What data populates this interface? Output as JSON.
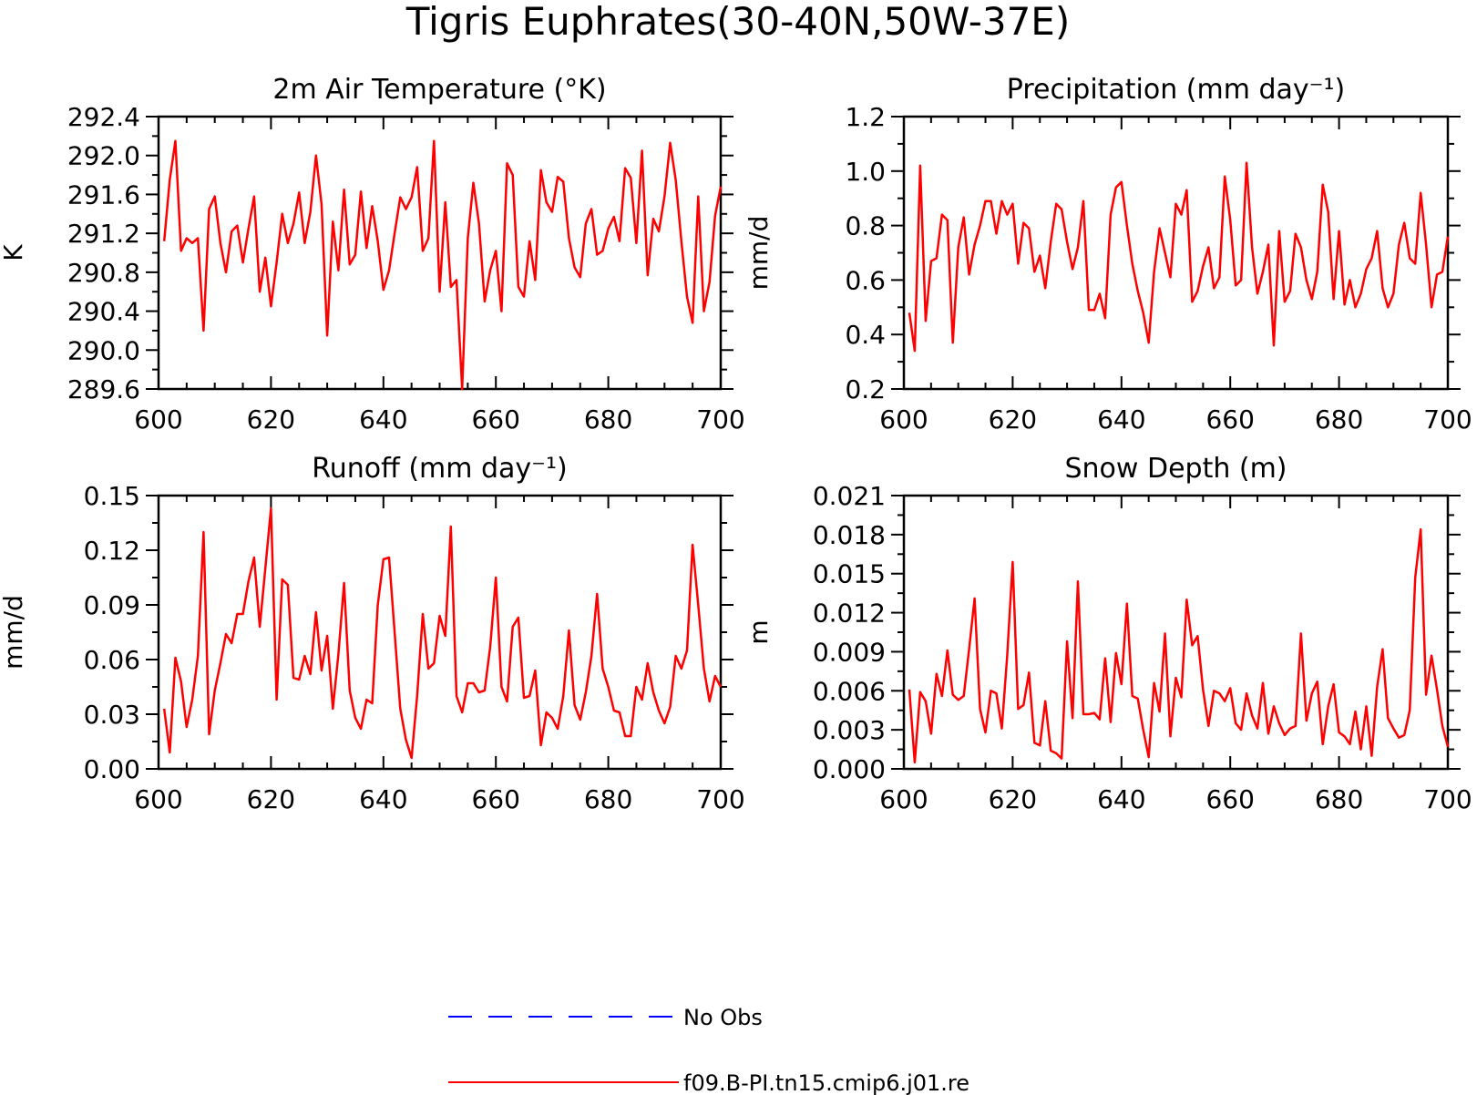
{
  "title": "Tigris Euphrates(30-40N,50W-37E)",
  "legend": {
    "entries": [
      {
        "label": "No Obs",
        "color": "#0000ff",
        "style": "dashed"
      },
      {
        "label": "f09.B-PI.tn15.cmip6.j01.re",
        "color": "#ff0000",
        "style": "solid"
      }
    ]
  },
  "chart_data": [
    {
      "type": "line",
      "title": "2m Air Temperature (°K)",
      "ylabel": "K",
      "xlabel": "",
      "xlim": [
        600,
        700
      ],
      "ylim": [
        289.6,
        292.4
      ],
      "xticks": [
        600,
        620,
        640,
        660,
        680,
        700
      ],
      "yticks": [
        "289.6",
        "290.0",
        "290.4",
        "290.8",
        "291.2",
        "291.6",
        "292.0",
        "292.4"
      ],
      "series": [
        {
          "name": "f09.B-PI.tn15.cmip6.j01.re",
          "color": "#ff0000",
          "x_start": 601,
          "values": [
            291.12,
            291.75,
            292.15,
            291.02,
            291.15,
            291.1,
            291.15,
            290.2,
            291.45,
            291.58,
            291.1,
            290.8,
            291.22,
            291.28,
            290.9,
            291.25,
            291.58,
            290.6,
            290.95,
            290.45,
            290.9,
            291.4,
            291.1,
            291.3,
            291.62,
            291.1,
            291.42,
            292.0,
            291.5,
            290.15,
            291.32,
            290.82,
            291.65,
            290.88,
            290.98,
            291.63,
            291.05,
            291.48,
            291.12,
            290.62,
            290.82,
            291.2,
            291.57,
            291.45,
            291.57,
            291.88,
            291.02,
            291.15,
            292.15,
            290.6,
            291.52,
            290.65,
            290.72,
            289.6,
            291.15,
            291.72,
            291.3,
            290.5,
            290.82,
            291.02,
            290.4,
            291.92,
            291.8,
            290.65,
            290.55,
            291.12,
            290.72,
            291.85,
            291.52,
            291.42,
            291.78,
            291.73,
            291.15,
            290.85,
            290.75,
            291.3,
            291.45,
            290.98,
            291.02,
            291.25,
            291.37,
            291.12,
            291.87,
            291.77,
            291.1,
            292.05,
            290.77,
            291.35,
            291.22,
            291.58,
            292.13,
            291.75,
            291.12,
            290.55,
            290.28,
            291.58,
            290.4,
            290.7,
            291.38,
            291.68
          ]
        }
      ]
    },
    {
      "type": "line",
      "title": "Precipitation (mm day⁻¹)",
      "ylabel": "mm/d",
      "xlabel": "",
      "xlim": [
        600,
        700
      ],
      "ylim": [
        0.2,
        1.2
      ],
      "xticks": [
        600,
        620,
        640,
        660,
        680,
        700
      ],
      "yticks": [
        "0.2",
        "0.4",
        "0.6",
        "0.8",
        "1.0",
        "1.2"
      ],
      "series": [
        {
          "name": "f09.B-PI.tn15.cmip6.j01.re",
          "color": "#ff0000",
          "x_start": 601,
          "values": [
            0.48,
            0.34,
            1.02,
            0.45,
            0.67,
            0.68,
            0.84,
            0.82,
            0.37,
            0.72,
            0.83,
            0.62,
            0.73,
            0.8,
            0.89,
            0.89,
            0.77,
            0.89,
            0.84,
            0.88,
            0.66,
            0.81,
            0.79,
            0.63,
            0.69,
            0.57,
            0.74,
            0.88,
            0.86,
            0.74,
            0.64,
            0.72,
            0.89,
            0.49,
            0.49,
            0.55,
            0.46,
            0.84,
            0.94,
            0.96,
            0.8,
            0.66,
            0.56,
            0.48,
            0.37,
            0.63,
            0.79,
            0.7,
            0.61,
            0.88,
            0.84,
            0.93,
            0.52,
            0.56,
            0.65,
            0.72,
            0.57,
            0.61,
            0.98,
            0.82,
            0.58,
            0.6,
            1.03,
            0.72,
            0.55,
            0.63,
            0.73,
            0.36,
            0.78,
            0.52,
            0.56,
            0.77,
            0.72,
            0.6,
            0.53,
            0.63,
            0.95,
            0.85,
            0.53,
            0.78,
            0.51,
            0.6,
            0.5,
            0.55,
            0.64,
            0.68,
            0.78,
            0.57,
            0.5,
            0.55,
            0.73,
            0.81,
            0.68,
            0.66,
            0.92,
            0.73,
            0.5,
            0.62,
            0.63,
            0.76
          ]
        }
      ]
    },
    {
      "type": "line",
      "title": "Runoff (mm day⁻¹)",
      "ylabel": "mm/d",
      "xlabel": "",
      "xlim": [
        600,
        700
      ],
      "ylim": [
        0.0,
        0.15
      ],
      "xticks": [
        600,
        620,
        640,
        660,
        680,
        700
      ],
      "yticks": [
        "0.00",
        "0.03",
        "0.06",
        "0.09",
        "0.12",
        "0.15"
      ],
      "series": [
        {
          "name": "f09.B-PI.tn15.cmip6.j01.re",
          "color": "#ff0000",
          "x_start": 601,
          "values": [
            0.033,
            0.009,
            0.061,
            0.048,
            0.023,
            0.038,
            0.062,
            0.13,
            0.019,
            0.043,
            0.058,
            0.074,
            0.069,
            0.085,
            0.085,
            0.103,
            0.116,
            0.078,
            0.11,
            0.143,
            0.038,
            0.104,
            0.101,
            0.05,
            0.049,
            0.062,
            0.052,
            0.086,
            0.054,
            0.073,
            0.033,
            0.063,
            0.102,
            0.043,
            0.028,
            0.022,
            0.038,
            0.036,
            0.09,
            0.115,
            0.116,
            0.075,
            0.033,
            0.016,
            0.006,
            0.04,
            0.085,
            0.055,
            0.058,
            0.084,
            0.073,
            0.133,
            0.04,
            0.031,
            0.047,
            0.047,
            0.042,
            0.043,
            0.067,
            0.105,
            0.045,
            0.037,
            0.078,
            0.083,
            0.039,
            0.04,
            0.054,
            0.013,
            0.031,
            0.028,
            0.022,
            0.04,
            0.076,
            0.035,
            0.027,
            0.042,
            0.062,
            0.096,
            0.055,
            0.045,
            0.032,
            0.031,
            0.018,
            0.018,
            0.045,
            0.038,
            0.058,
            0.042,
            0.032,
            0.025,
            0.034,
            0.062,
            0.055,
            0.065,
            0.123,
            0.09,
            0.055,
            0.037,
            0.051,
            0.045
          ]
        }
      ]
    },
    {
      "type": "line",
      "title": "Snow Depth (m)",
      "ylabel": "m",
      "xlabel": "",
      "xlim": [
        600,
        700
      ],
      "ylim": [
        0.0,
        0.021
      ],
      "xticks": [
        600,
        620,
        640,
        660,
        680,
        700
      ],
      "yticks": [
        "0.000",
        "0.003",
        "0.006",
        "0.009",
        "0.012",
        "0.015",
        "0.018",
        "0.021"
      ],
      "series": [
        {
          "name": "f09.B-PI.tn15.cmip6.j01.re",
          "color": "#ff0000",
          "x_start": 601,
          "values": [
            0.0061,
            0.0005,
            0.0059,
            0.0052,
            0.0027,
            0.0073,
            0.0056,
            0.0091,
            0.0057,
            0.0053,
            0.0056,
            0.0092,
            0.0131,
            0.0046,
            0.0028,
            0.006,
            0.0058,
            0.0031,
            0.0087,
            0.0159,
            0.0046,
            0.0049,
            0.0074,
            0.002,
            0.0018,
            0.0052,
            0.0014,
            0.0012,
            0.0008,
            0.0098,
            0.0039,
            0.0144,
            0.0042,
            0.0042,
            0.0043,
            0.0038,
            0.0085,
            0.0036,
            0.0089,
            0.0065,
            0.0127,
            0.0056,
            0.0054,
            0.003,
            0.0009,
            0.0066,
            0.0044,
            0.0104,
            0.0025,
            0.007,
            0.0055,
            0.013,
            0.0095,
            0.0102,
            0.0061,
            0.0033,
            0.006,
            0.0058,
            0.0052,
            0.0062,
            0.0035,
            0.003,
            0.0058,
            0.0041,
            0.0031,
            0.0066,
            0.0027,
            0.0048,
            0.0035,
            0.0026,
            0.0031,
            0.0033,
            0.0104,
            0.0037,
            0.0058,
            0.0067,
            0.0019,
            0.0048,
            0.0065,
            0.0028,
            0.0025,
            0.0019,
            0.0044,
            0.0015,
            0.0048,
            0.001,
            0.0063,
            0.0092,
            0.0039,
            0.0031,
            0.0024,
            0.0026,
            0.0045,
            0.0147,
            0.0184,
            0.0057,
            0.0087,
            0.0061,
            0.0033,
            0.0017
          ]
        }
      ]
    }
  ]
}
